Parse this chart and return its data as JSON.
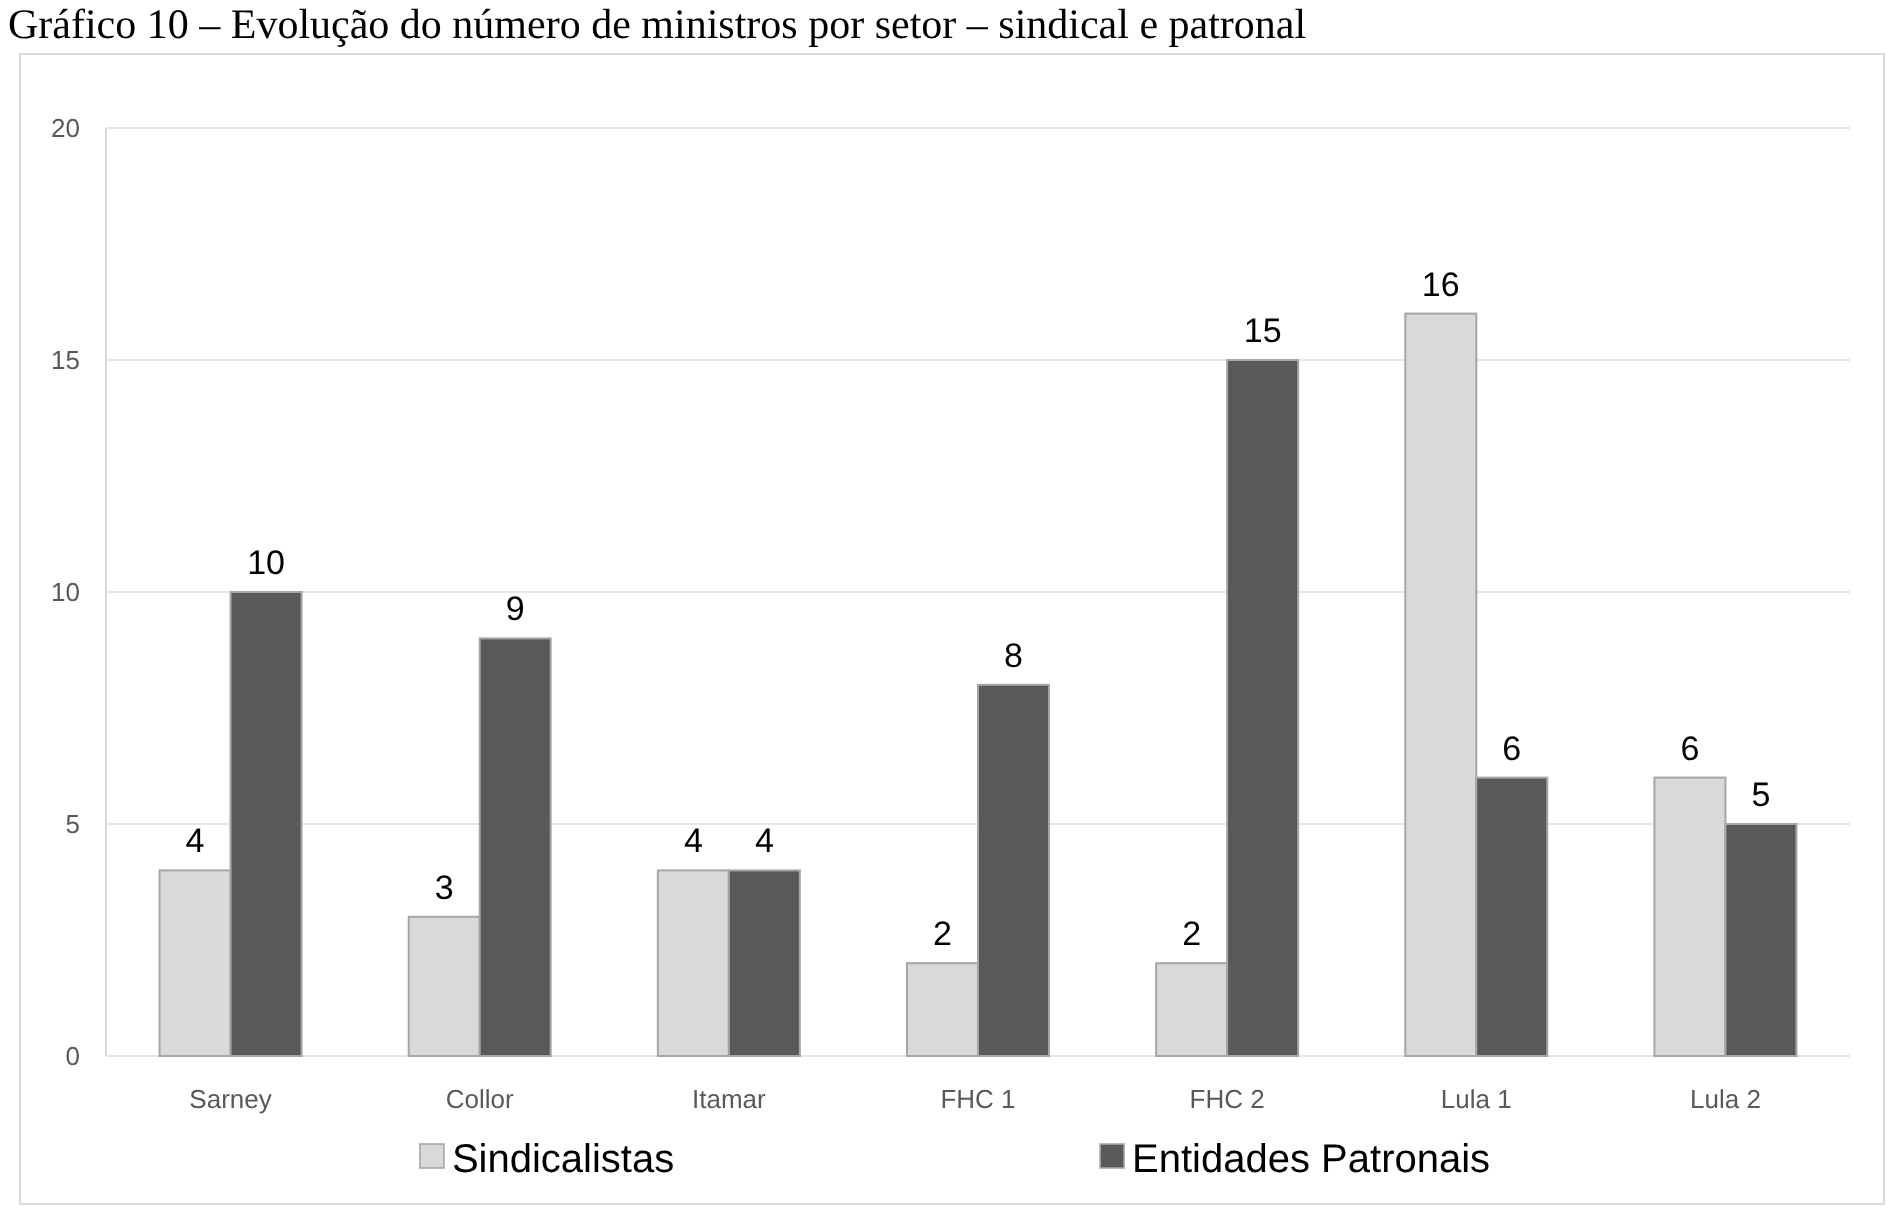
{
  "chart_data": {
    "type": "bar",
    "title": "Gráfico 10 – Evolução do número de ministros por setor – sindical e patronal",
    "categories": [
      "Sarney",
      "Collor",
      "Itamar",
      "FHC 1",
      "FHC 2",
      "Lula 1",
      "Lula 2"
    ],
    "series": [
      {
        "name": "Sindicalistas",
        "color": "#d9d9d9",
        "values": [
          4,
          3,
          4,
          2,
          2,
          16,
          6
        ]
      },
      {
        "name": "Entidades Patronais",
        "color": "#595959",
        "values": [
          10,
          9,
          4,
          8,
          15,
          6,
          5
        ]
      }
    ],
    "ylim": [
      0,
      20
    ],
    "yticks": [
      0,
      5,
      10,
      15,
      20
    ],
    "grid": "y",
    "legend": "bottom",
    "data_labels": true
  }
}
